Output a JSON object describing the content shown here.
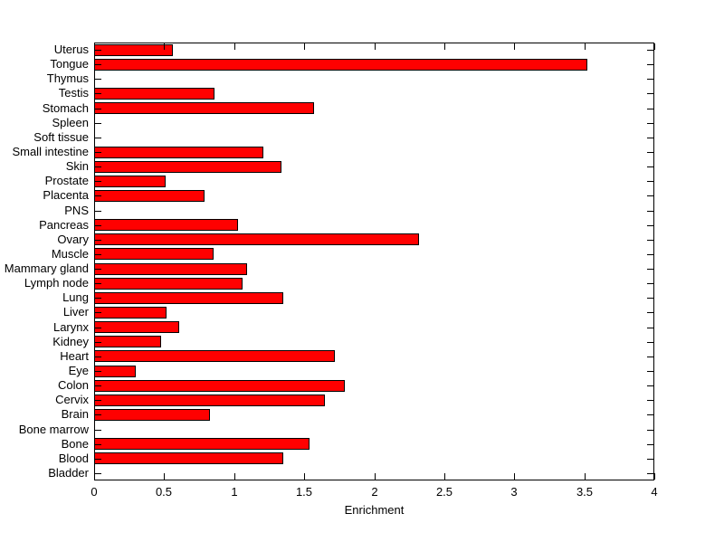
{
  "figure": {
    "background_color": "#ffffff",
    "axis_color": "#000000",
    "text_color": "#000000"
  },
  "chart_data": {
    "type": "bar",
    "orientation": "horizontal",
    "title": "",
    "xlabel": "Enrichment",
    "ylabel": "",
    "xlim": [
      0,
      4
    ],
    "xticks": [
      0,
      0.5,
      1,
      1.5,
      2,
      2.5,
      3,
      3.5,
      4
    ],
    "xtick_labels": [
      "0",
      "0.5",
      "1",
      "1.5",
      "2",
      "2.5",
      "3",
      "3.5",
      "4"
    ],
    "grid": false,
    "legend": null,
    "bar_color": "#ff0000",
    "bar_edge_color": "#000000",
    "categories_order": "top-to-bottom",
    "categories": [
      "Uterus",
      "Tongue",
      "Thymus",
      "Testis",
      "Stomach",
      "Spleen",
      "Soft tissue",
      "Small intestine",
      "Skin",
      "Prostate",
      "Placenta",
      "PNS",
      "Pancreas",
      "Ovary",
      "Muscle",
      "Mammary gland",
      "Lymph node",
      "Lung",
      "Liver",
      "Larynx",
      "Kidney",
      "Heart",
      "Eye",
      "Colon",
      "Cervix",
      "Brain",
      "Bone marrow",
      "Bone",
      "Blood",
      "Bladder"
    ],
    "values": [
      0.56,
      3.52,
      0,
      0.86,
      1.57,
      0,
      0,
      1.21,
      1.34,
      0.51,
      0.79,
      0,
      1.03,
      2.32,
      0.85,
      1.09,
      1.06,
      1.35,
      0.52,
      0.61,
      0.48,
      1.72,
      0.3,
      1.79,
      1.65,
      0.83,
      0,
      1.54,
      1.35,
      0
    ]
  }
}
